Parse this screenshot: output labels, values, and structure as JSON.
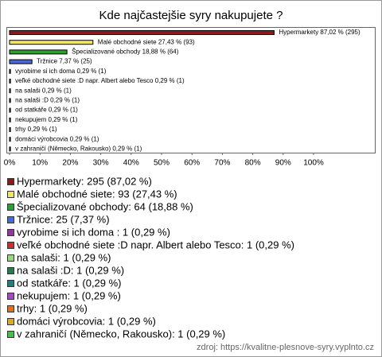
{
  "chart_data": {
    "type": "bar",
    "orientation": "horizontal",
    "title": "Kde najčastejšie syry nakupujete ?",
    "categories": [
      "Hypermarkety",
      "Malé obchodné siete",
      "Špecializované obchody",
      "Tržnice",
      "vyrobime si ich doma ",
      "veľké obchodné siete :D napr. Albert alebo Tesco",
      "na salaši",
      "na salaši :D",
      "od statkáře",
      "nekupujem",
      "trhy",
      "domáci výrobcovia",
      "v zahraničí (Německo, Rakousko)"
    ],
    "values": [
      87.02,
      27.43,
      18.88,
      7.37,
      0.29,
      0.29,
      0.29,
      0.29,
      0.29,
      0.29,
      0.29,
      0.29,
      0.29
    ],
    "value_labels": [
      "Hypermarkety 87,02 % (295)",
      "Malé obchodné siete 27,43 % (93)",
      "Špecializované obchody 18,88 % (64)",
      "Tržnice 7,37 % (25)",
      "vyrobime si ich doma  0,29 % (1)",
      "veľké obchodné siete :D napr. Albert alebo Tesco 0,29 % (1)",
      "na salaši 0,29 % (1)",
      "na salaši :D 0,29 % (1)",
      "od statkáře 0,29 % (1)",
      "nekupujem 0,29 % (1)",
      "trhy 0,29 % (1)",
      "domáci výrobcovia 0,29 % (1)",
      "v zahraničí (Německo, Rakousko) 0,29 % (1)"
    ],
    "legend_labels": [
      "Hypermarkety: 295 (87,02 %)",
      "Malé obchodné siete: 93 (27,43 %)",
      "Špecializované obchody: 64 (18,88 %)",
      "Tržnice: 25 (7,37 %)",
      "vyrobime si ich doma : 1 (0,29 %)",
      "veľké obchodné siete :D napr. Albert alebo Tesco: 1 (0,29 %)",
      "na salaši: 1 (0,29 %)",
      "na salaši :D: 1 (0,29 %)",
      "od statkáře: 1 (0,29 %)",
      "nekupujem: 1 (0,29 %)",
      "trhy: 1 (0,29 %)",
      "domáci výrobcovia: 1 (0,29 %)",
      "v zahraničí (Německo, Rakousko): 1 (0,29 %)"
    ],
    "colors": [
      "#8b1a1a",
      "#f2e46a",
      "#2ca02c",
      "#4a68d8",
      "#9a30a8",
      "#c83030",
      "#98d878",
      "#208048",
      "#208080",
      "#a848c8",
      "#e07020",
      "#e0a828",
      "#48c048"
    ],
    "xlim": [
      0,
      100
    ],
    "xticks": [
      {
        "value": 0,
        "label": "0%"
      },
      {
        "value": 10,
        "label": "10%"
      },
      {
        "value": 20,
        "label": "20%"
      },
      {
        "value": 30,
        "label": "30%"
      },
      {
        "value": 40,
        "label": "40%"
      },
      {
        "value": 50,
        "label": "50%"
      },
      {
        "value": 60,
        "label": "60%"
      },
      {
        "value": 70,
        "label": "70%"
      },
      {
        "value": 80,
        "label": "80%"
      },
      {
        "value": 90,
        "label": "90%"
      },
      {
        "value": 100,
        "label": "100%"
      }
    ],
    "source": "zdroj: https://kvalitne-plesnove-syry.vyplnto.cz"
  }
}
